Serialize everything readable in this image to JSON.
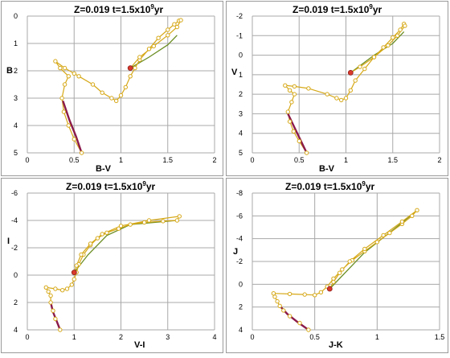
{
  "chart_data": [
    {
      "type": "line",
      "title_prefix": "Z=0.019   t=1.5x10",
      "title_exp": "9",
      "title_suffix": "yr",
      "xlabel": "B-V",
      "ylabel": "B",
      "xlim": [
        0,
        2
      ],
      "ylim": [
        5,
        0
      ],
      "y_inverted": true,
      "xticks": [
        "0",
        "0.5",
        "1",
        "1.5",
        "2"
      ],
      "yticks": [
        "0",
        "1",
        "2",
        "3",
        "4",
        "5"
      ],
      "gridlines": true,
      "line_color": "#d6a817",
      "fit_color": "#6b8e23",
      "ms_color": "#8b1a4a",
      "points": [
        [
          0.58,
          5.0
        ],
        [
          0.5,
          4.5
        ],
        [
          0.44,
          4.0
        ],
        [
          0.39,
          3.5
        ],
        [
          0.37,
          3.0
        ],
        [
          0.4,
          2.5
        ],
        [
          0.44,
          2.2
        ],
        [
          0.35,
          1.9
        ],
        [
          0.3,
          1.65
        ],
        [
          0.4,
          1.9
        ],
        [
          0.5,
          2.1
        ],
        [
          0.55,
          2.2
        ],
        [
          0.7,
          2.5
        ],
        [
          0.8,
          2.8
        ],
        [
          0.9,
          3.0
        ],
        [
          0.95,
          3.1
        ],
        [
          1.0,
          2.9
        ],
        [
          1.05,
          2.6
        ],
        [
          1.1,
          2.2
        ],
        [
          1.15,
          1.9
        ],
        [
          1.2,
          1.6
        ],
        [
          1.3,
          1.2
        ],
        [
          1.4,
          0.8
        ],
        [
          1.5,
          0.5
        ],
        [
          1.57,
          0.3
        ],
        [
          1.62,
          0.17
        ],
        [
          1.64,
          0.15
        ],
        [
          1.6,
          0.4
        ],
        [
          1.5,
          0.7
        ],
        [
          1.35,
          1.1
        ],
        [
          1.2,
          1.5
        ],
        [
          1.1,
          1.9
        ]
      ],
      "fit_line": [
        [
          1.1,
          1.9
        ],
        [
          1.3,
          1.5
        ],
        [
          1.5,
          1.05
        ],
        [
          1.6,
          0.7
        ]
      ],
      "main_sequence": [
        [
          0.38,
          3.1
        ],
        [
          0.45,
          3.8
        ],
        [
          0.52,
          4.4
        ],
        [
          0.58,
          5.0
        ]
      ],
      "red_marker": [
        1.1,
        1.9
      ]
    },
    {
      "type": "line",
      "title_prefix": "Z=0.019   t=1.5x10",
      "title_exp": "9",
      "title_suffix": "yr",
      "xlabel": "B-V",
      "ylabel": "V",
      "xlim": [
        0,
        2
      ],
      "ylim": [
        5,
        -2
      ],
      "y_inverted": true,
      "xticks": [
        "0",
        "0.5",
        "1",
        "1.5",
        "2"
      ],
      "yticks": [
        "-2",
        "-1",
        "0",
        "1",
        "2",
        "3",
        "4",
        "5"
      ],
      "gridlines": true,
      "line_color": "#d6a817",
      "fit_color": "#6b8e23",
      "ms_color": "#8b1a4a",
      "points": [
        [
          0.58,
          5.0
        ],
        [
          0.5,
          4.4
        ],
        [
          0.44,
          3.9
        ],
        [
          0.4,
          3.4
        ],
        [
          0.38,
          2.9
        ],
        [
          0.42,
          2.4
        ],
        [
          0.45,
          2.0
        ],
        [
          0.4,
          1.8
        ],
        [
          0.35,
          1.55
        ],
        [
          0.45,
          1.6
        ],
        [
          0.6,
          1.7
        ],
        [
          0.8,
          2.0
        ],
        [
          0.9,
          2.2
        ],
        [
          0.95,
          2.3
        ],
        [
          1.0,
          2.2
        ],
        [
          1.05,
          1.8
        ],
        [
          1.1,
          1.3
        ],
        [
          1.2,
          0.7
        ],
        [
          1.3,
          0.1
        ],
        [
          1.4,
          -0.4
        ],
        [
          1.5,
          -0.9
        ],
        [
          1.58,
          -1.3
        ],
        [
          1.62,
          -1.6
        ],
        [
          1.63,
          -1.5
        ],
        [
          1.55,
          -1.0
        ],
        [
          1.45,
          -0.5
        ],
        [
          1.3,
          0.1
        ],
        [
          1.15,
          0.6
        ],
        [
          1.05,
          0.9
        ]
      ],
      "fit_line": [
        [
          1.05,
          0.9
        ],
        [
          1.3,
          0.0
        ],
        [
          1.5,
          -0.6
        ],
        [
          1.62,
          -1.2
        ]
      ],
      "main_sequence": [
        [
          0.38,
          3.0
        ],
        [
          0.45,
          3.7
        ],
        [
          0.52,
          4.4
        ],
        [
          0.58,
          5.0
        ]
      ],
      "red_marker": [
        1.05,
        0.9
      ]
    },
    {
      "type": "line",
      "title_prefix": "Z=0.019   t=1.5x10",
      "title_exp": "9",
      "title_suffix": "yr",
      "xlabel": "V-I",
      "ylabel": "I",
      "xlim": [
        0,
        4
      ],
      "ylim": [
        4,
        -6
      ],
      "y_inverted": true,
      "xticks": [
        "0",
        "1",
        "2",
        "3",
        "4"
      ],
      "yticks": [
        "-6",
        "-4",
        "-2",
        "0",
        "2",
        "4"
      ],
      "gridlines": true,
      "line_color": "#d6a817",
      "fit_color": "#6b8e23",
      "ms_color": "#8b1a4a",
      "points": [
        [
          0.7,
          4.0
        ],
        [
          0.6,
          3.2
        ],
        [
          0.55,
          2.6
        ],
        [
          0.5,
          2.0
        ],
        [
          0.5,
          1.5
        ],
        [
          0.45,
          1.2
        ],
        [
          0.4,
          0.9
        ],
        [
          0.6,
          1.0
        ],
        [
          0.75,
          1.1
        ],
        [
          0.85,
          1.0
        ],
        [
          0.95,
          0.7
        ],
        [
          1.0,
          0.3
        ],
        [
          1.05,
          -0.2
        ],
        [
          1.1,
          -0.8
        ],
        [
          1.2,
          -1.5
        ],
        [
          1.35,
          -2.2
        ],
        [
          1.5,
          -2.7
        ],
        [
          1.7,
          -3.1
        ],
        [
          1.95,
          -3.4
        ],
        [
          2.2,
          -3.7
        ],
        [
          2.5,
          -3.85
        ],
        [
          2.9,
          -3.95
        ],
        [
          3.2,
          -4.0
        ],
        [
          3.25,
          -4.3
        ],
        [
          2.6,
          -4.0
        ],
        [
          2.0,
          -3.6
        ],
        [
          1.6,
          -3.0
        ],
        [
          1.35,
          -2.3
        ],
        [
          1.15,
          -1.5
        ],
        [
          1.05,
          -0.7
        ],
        [
          1.0,
          -0.2
        ]
      ],
      "fit_line": [
        [
          1.0,
          -0.2
        ],
        [
          1.3,
          -1.5
        ],
        [
          1.7,
          -2.9
        ],
        [
          2.2,
          -3.7
        ],
        [
          3.2,
          -4.0
        ]
      ],
      "main_sequence": [
        [
          0.5,
          2.0
        ],
        [
          0.55,
          2.7
        ],
        [
          0.62,
          3.3
        ],
        [
          0.7,
          4.0
        ]
      ],
      "red_marker": [
        1.0,
        -0.2
      ]
    },
    {
      "type": "line",
      "title_prefix": "Z=0.019   t=1.5x10",
      "title_exp": "9",
      "title_suffix": "yr",
      "xlabel": "J-K",
      "ylabel": "J",
      "xlim": [
        0,
        1.5
      ],
      "ylim": [
        4,
        -8
      ],
      "y_inverted": true,
      "xticks": [
        "0",
        "0.5",
        "1",
        "1.5"
      ],
      "yticks": [
        "-8",
        "-6",
        "-4",
        "-2",
        "0",
        "2",
        "4"
      ],
      "gridlines": true,
      "line_color": "#d6a817",
      "fit_color": "#6b8e23",
      "ms_color": "#8b1a4a",
      "points": [
        [
          0.45,
          4.0
        ],
        [
          0.38,
          3.4
        ],
        [
          0.3,
          2.8
        ],
        [
          0.25,
          2.3
        ],
        [
          0.22,
          1.9
        ],
        [
          0.2,
          1.5
        ],
        [
          0.18,
          1.1
        ],
        [
          0.17,
          0.8
        ],
        [
          0.3,
          0.85
        ],
        [
          0.42,
          0.9
        ],
        [
          0.5,
          0.95
        ],
        [
          0.55,
          0.7
        ],
        [
          0.6,
          0.2
        ],
        [
          0.65,
          -0.5
        ],
        [
          0.72,
          -1.3
        ],
        [
          0.8,
          -2.1
        ],
        [
          0.9,
          -2.9
        ],
        [
          1.0,
          -3.7
        ],
        [
          1.1,
          -4.5
        ],
        [
          1.2,
          -5.3
        ],
        [
          1.28,
          -6.0
        ],
        [
          1.32,
          -6.5
        ],
        [
          1.2,
          -5.5
        ],
        [
          1.05,
          -4.3
        ],
        [
          0.9,
          -3.1
        ],
        [
          0.78,
          -2.0
        ],
        [
          0.7,
          -1.0
        ],
        [
          0.65,
          -0.2
        ],
        [
          0.62,
          0.4
        ]
      ],
      "fit_line": [
        [
          0.62,
          0.4
        ],
        [
          0.9,
          -2.8
        ],
        [
          1.2,
          -5.4
        ],
        [
          1.32,
          -6.5
        ]
      ],
      "main_sequence": [
        [
          0.22,
          1.9
        ],
        [
          0.28,
          2.6
        ],
        [
          0.36,
          3.3
        ],
        [
          0.45,
          4.0
        ]
      ],
      "red_marker": [
        0.62,
        0.4
      ]
    }
  ]
}
